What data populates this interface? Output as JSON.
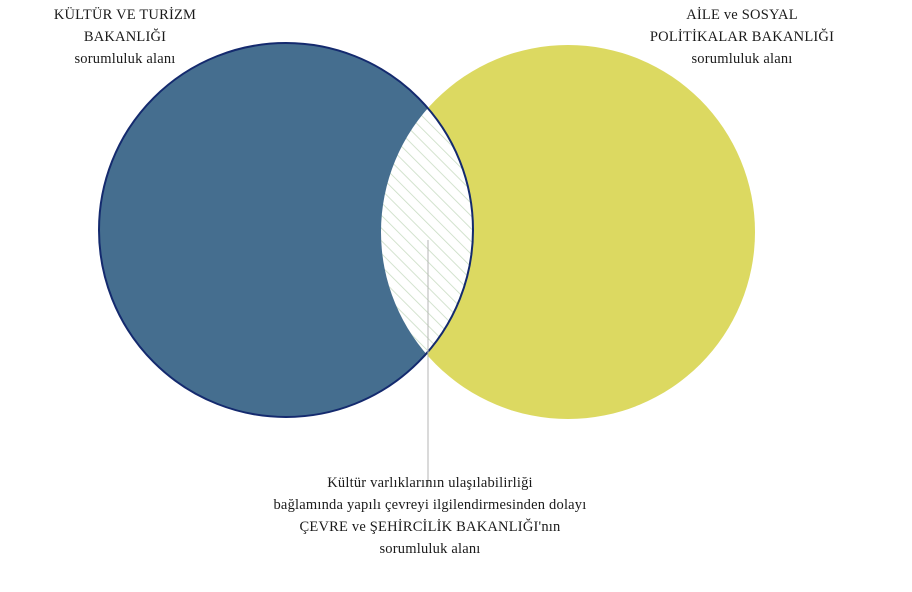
{
  "diagram": {
    "type": "venn",
    "left_set": {
      "lines": [
        "KÜLTÜR VE TURİZM",
        "BAKANLIĞI",
        "sorumluluk alanı"
      ],
      "color": "#456e8f",
      "outline_color": "#142a6e"
    },
    "right_set": {
      "lines": [
        "AİLE ve SOSYAL",
        "POLİTİKALAR BAKANLIĞI",
        "sorumluluk alanı"
      ],
      "color": "#dcd961"
    },
    "intersection": {
      "lines": [
        "Kültür varlıklarının ulaşılabilirliği",
        "bağlamında yapılı çevreyi ilgilendirmesinden dolayı",
        "ÇEVRE ve ŞEHİRCİLİK BAKANLIĞI'nın",
        "sorumluluk alanı"
      ],
      "fill": "#ffffff",
      "hatch_color": "#c9dcc3",
      "pointer_color": "#b5b5b5"
    }
  }
}
